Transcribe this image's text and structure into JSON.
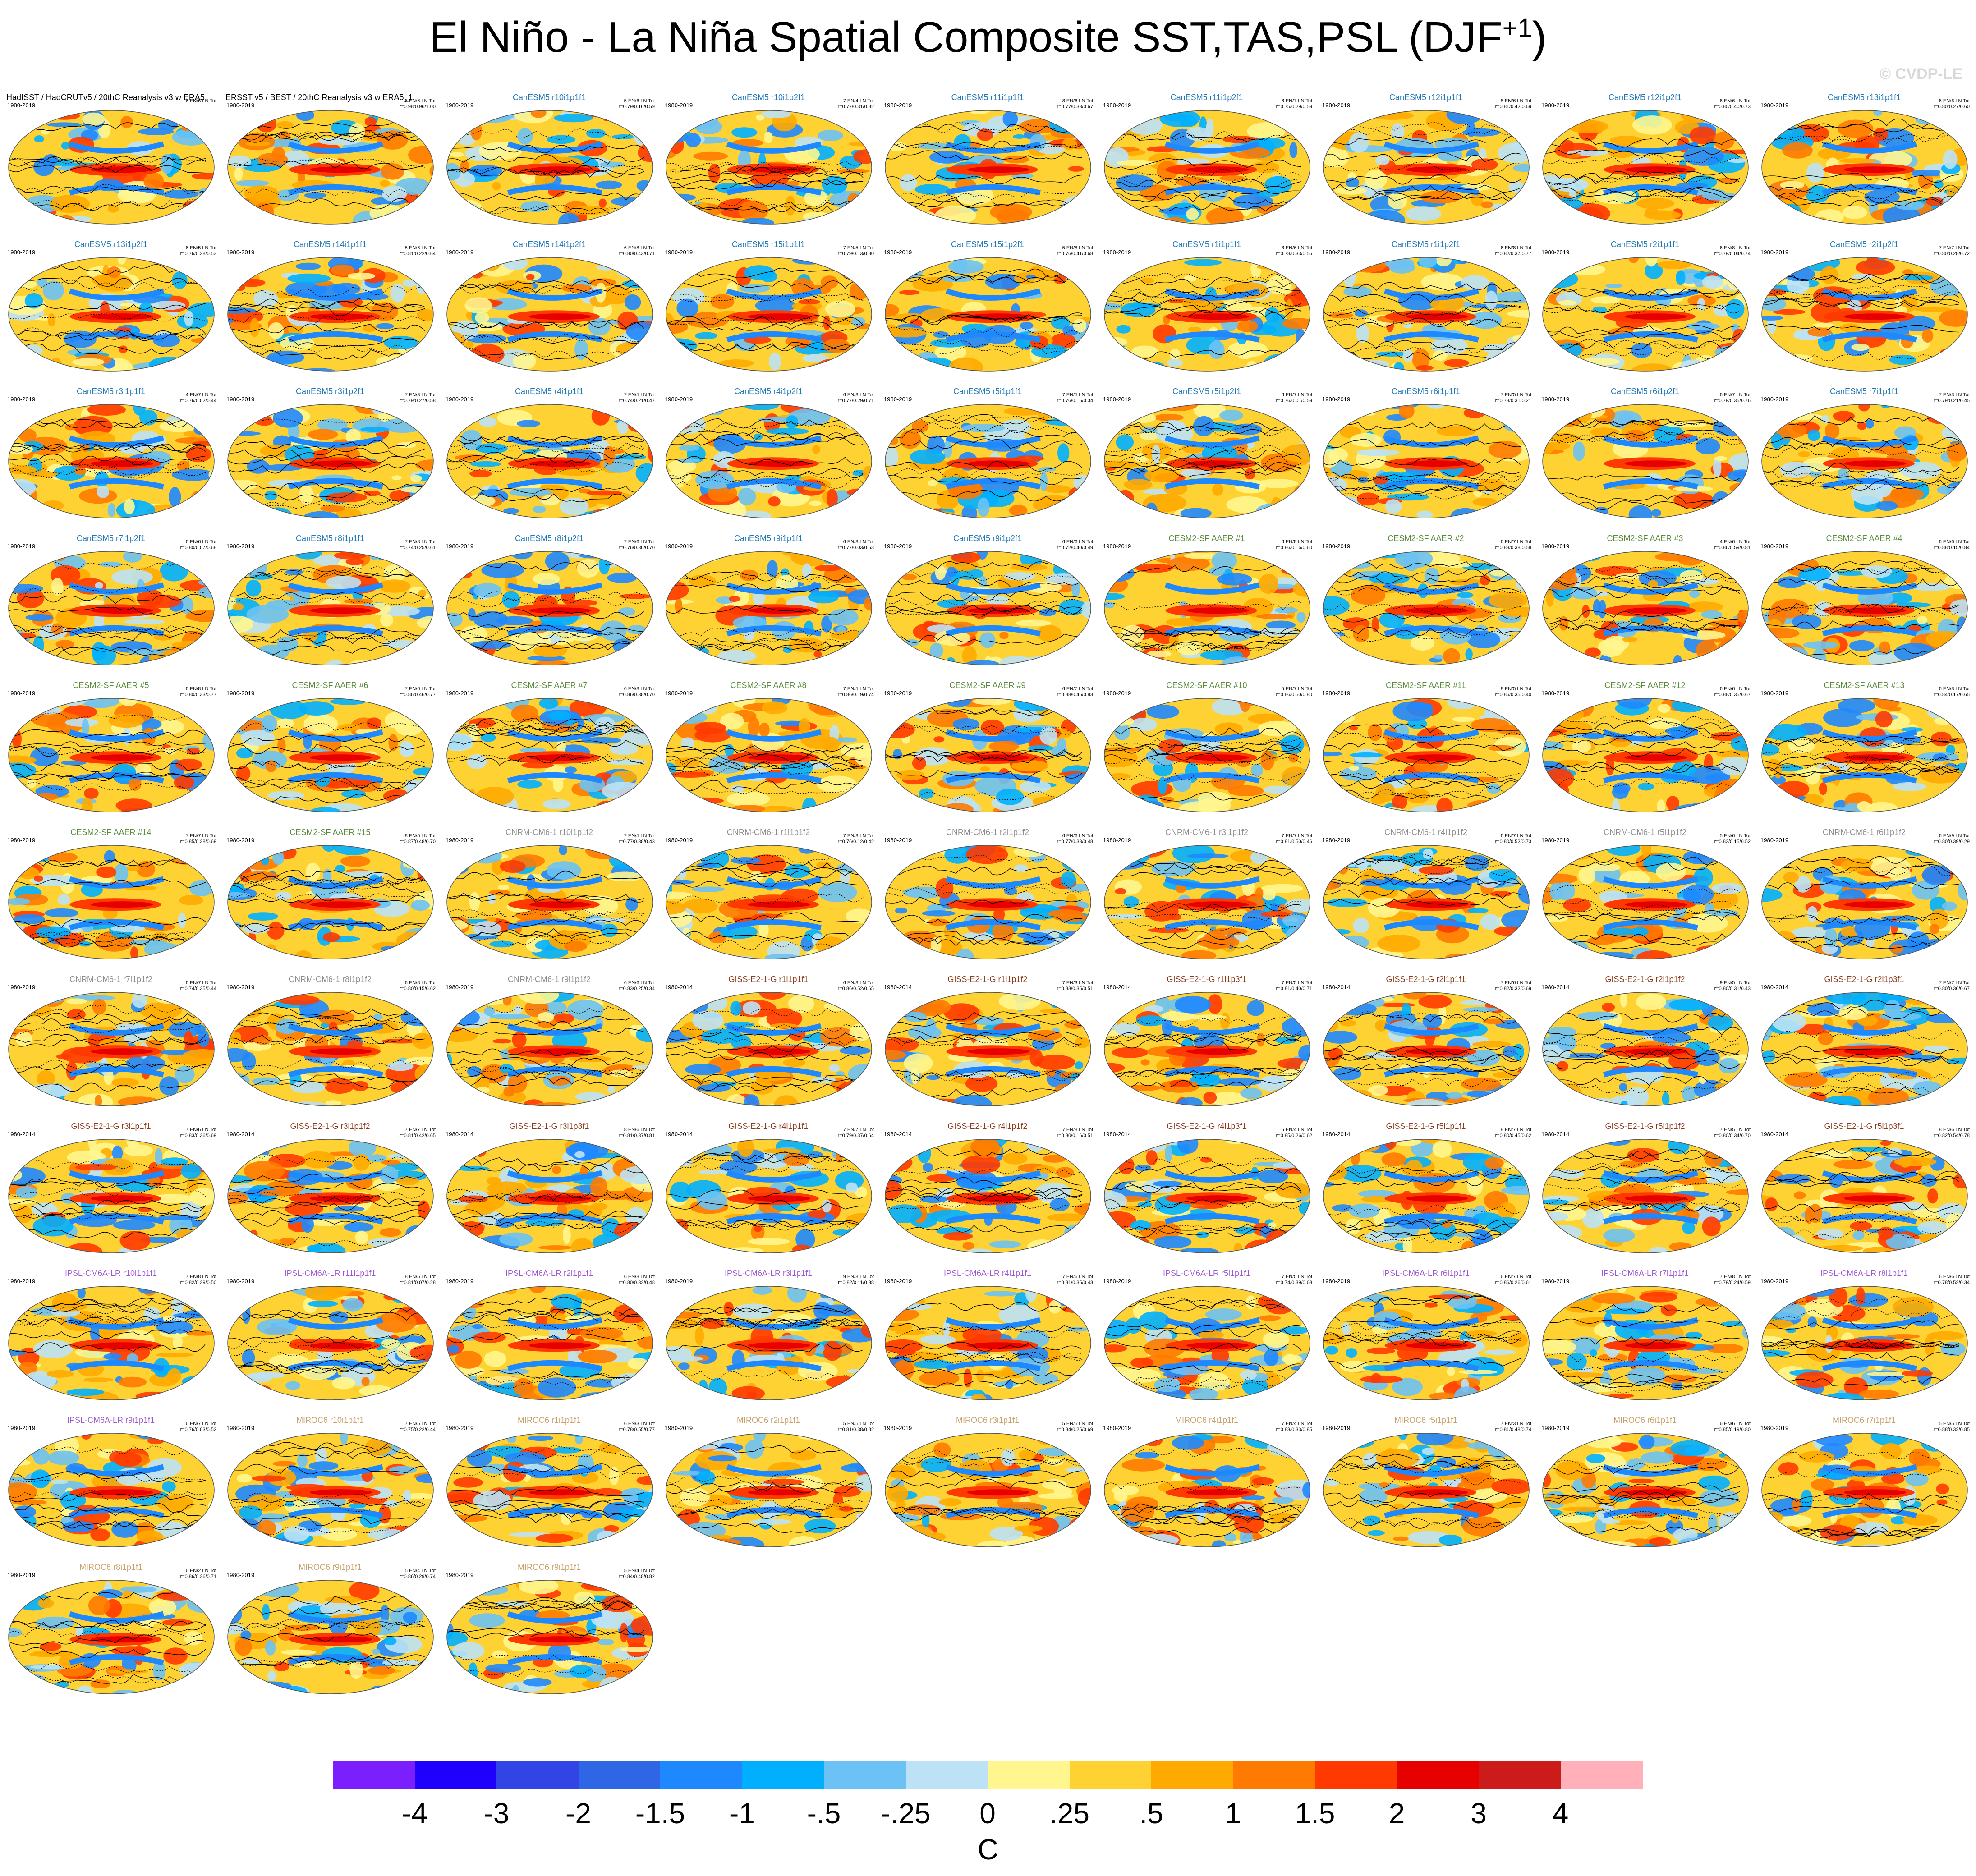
{
  "title": "El Niño - La Niña Spatial Composite SST,TAS,PSL (DJF",
  "title_sup": "+1",
  "title_close": ")",
  "copyright": "© CVDP-LE",
  "chart_data": {
    "type": "heatmap",
    "description_type": "small-multiples global maps (filled SST/TAS anomalies with PSL contours)",
    "colorbar": {
      "unit": "C",
      "tick_labels": [
        "-4",
        "-3",
        "-2",
        "-1.5",
        "-1",
        "-.5",
        "-.25",
        "0",
        ".25",
        ".5",
        "1",
        "1.5",
        "2",
        "3",
        "4"
      ],
      "colors": [
        "#7c1fff",
        "#1f00ff",
        "#3344e6",
        "#2f66e6",
        "#1e88ff",
        "#00b0ff",
        "#6cc2f4",
        "#bde2f5",
        "#fff68f",
        "#ffd233",
        "#ffaa00",
        "#ff7a00",
        "#ff3a00",
        "#e60000",
        "#cc1b1b",
        "#ffb0b8"
      ]
    },
    "panels": [
      {
        "title": "HadISST / HadCRUTv5 / 20thC Reanalysis v3 w ERA5",
        "years": "1980-2019",
        "stats": "6 EN/6 LN Tot",
        "group": "obs"
      },
      {
        "title": "ERSST v5 / BEST / 20thC Reanalysis v3 w ERA5_1",
        "years": "1980-2019",
        "stats": "6 EN/6 LN Tot\nr=0.98/0.96/1.00",
        "group": "obs"
      },
      {
        "title": "CanESM5 r10i1p1f1",
        "years": "1980-2019",
        "stats": "5 EN/6 LN Tot\nr=0.79/0.16/0.59",
        "group": "canesm"
      },
      {
        "title": "CanESM5 r10i1p2f1",
        "years": "1980-2019",
        "stats": "7 EN/4 LN Tot\nr=0.77/0.31/0.82",
        "group": "canesm"
      },
      {
        "title": "CanESM5 r11i1p1f1",
        "years": "1980-2019",
        "stats": "8 EN/6 LN Tot\nr=0.77/0.33/0.67",
        "group": "canesm"
      },
      {
        "title": "CanESM5 r11i1p2f1",
        "years": "1980-2019",
        "stats": "6 EN/7 LN Tot\nr=0.75/0.29/0.59",
        "group": "canesm"
      },
      {
        "title": "CanESM5 r12i1p1f1",
        "years": "1980-2019",
        "stats": "8 EN/6 LN Tot\nr=0.81/0.42/0.69",
        "group": "canesm"
      },
      {
        "title": "CanESM5 r12i1p2f1",
        "years": "1980-2019",
        "stats": "6 EN/6 LN Tot\nr=0.80/0.40/0.73",
        "group": "canesm"
      },
      {
        "title": "CanESM5 r13i1p1f1",
        "years": "1980-2019",
        "stats": "6 EN/6 LN Tot\nr=0.80/0.27/0.60",
        "group": "canesm"
      },
      {
        "title": "CanESM5 r13i1p2f1",
        "years": "1980-2019",
        "stats": "6 EN/5 LN Tot\nr=0.76/0.28/0.53",
        "group": "canesm"
      },
      {
        "title": "CanESM5 r14i1p1f1",
        "years": "1980-2019",
        "stats": "5 EN/6 LN Tot\nr=0.81/0.22/0.64",
        "group": "canesm"
      },
      {
        "title": "CanESM5 r14i1p2f1",
        "years": "1980-2019",
        "stats": "6 EN/8 LN Tot\nr=0.80/0.43/0.71",
        "group": "canesm"
      },
      {
        "title": "CanESM5 r15i1p1f1",
        "years": "1980-2019",
        "stats": "7 EN/5 LN Tot\nr=0.79/0.13/0.80",
        "group": "canesm"
      },
      {
        "title": "CanESM5 r15i1p2f1",
        "years": "1980-2019",
        "stats": "5 EN/8 LN Tot\nr=0.76/0.41/0.68",
        "group": "canesm"
      },
      {
        "title": "CanESM5 r1i1p1f1",
        "years": "1980-2019",
        "stats": "6 EN/6 LN Tot\nr=0.78/0.33/0.55",
        "group": "canesm"
      },
      {
        "title": "CanESM5 r1i1p2f1",
        "years": "1980-2019",
        "stats": "6 EN/8 LN Tot\nr=0.82/0.37/0.77",
        "group": "canesm"
      },
      {
        "title": "CanESM5 r2i1p1f1",
        "years": "1980-2019",
        "stats": "6 EN/8 LN Tot\nr=0.79/0.04/0.74",
        "group": "canesm"
      },
      {
        "title": "CanESM5 r2i1p2f1",
        "years": "1980-2019",
        "stats": "7 EN/7 LN Tot\nr=0.80/0.28/0.72",
        "group": "canesm"
      },
      {
        "title": "CanESM5 r3i1p1f1",
        "years": "1980-2019",
        "stats": "4 EN/7 LN Tot\nr=0.76/0.02/0.44",
        "group": "canesm"
      },
      {
        "title": "CanESM5 r3i1p2f1",
        "years": "1980-2019",
        "stats": "7 EN/3 LN Tot\nr=0.79/0.27/0.58",
        "group": "canesm"
      },
      {
        "title": "CanESM5 r4i1p1f1",
        "years": "1980-2019",
        "stats": "7 EN/5 LN Tot\nr=0.74/0.21/0.47",
        "group": "canesm"
      },
      {
        "title": "CanESM5 r4i1p2f1",
        "years": "1980-2019",
        "stats": "6 EN/8 LN Tot\nr=0.77/0.29/0.71",
        "group": "canesm"
      },
      {
        "title": "CanESM5 r5i1p1f1",
        "years": "1980-2019",
        "stats": "7 EN/5 LN Tot\nr=0.76/0.15/0.34",
        "group": "canesm"
      },
      {
        "title": "CanESM5 r5i1p2f1",
        "years": "1980-2019",
        "stats": "6 EN/7 LN Tot\nr=0.76/0.01/0.59",
        "group": "canesm"
      },
      {
        "title": "CanESM5 r6i1p1f1",
        "years": "1980-2019",
        "stats": "7 EN/5 LN Tot\nr=0.73/0.31/0.21",
        "group": "canesm"
      },
      {
        "title": "CanESM5 r6i1p2f1",
        "years": "1980-2019",
        "stats": "6 EN/7 LN Tot\nr=0.79/0.35/0.76",
        "group": "canesm"
      },
      {
        "title": "CanESM5 r7i1p1f1",
        "years": "1980-2019",
        "stats": "7 EN/3 LN Tot\nr=0.79/0.21/0.45",
        "group": "canesm"
      },
      {
        "title": "CanESM5 r7i1p2f1",
        "years": "1980-2019",
        "stats": "6 EN/6 LN Tot\nr=0.80/0.07/0.68",
        "group": "canesm"
      },
      {
        "title": "CanESM5 r8i1p1f1",
        "years": "1980-2019",
        "stats": "7 EN/8 LN Tot\nr=0.74/0.25/0.61",
        "group": "canesm"
      },
      {
        "title": "CanESM5 r8i1p2f1",
        "years": "1980-2019",
        "stats": "7 EN/6 LN Tot\nr=0.76/0.30/0.70",
        "group": "canesm"
      },
      {
        "title": "CanESM5 r9i1p1f1",
        "years": "1980-2019",
        "stats": "6 EN/8 LN Tot\nr=0.77/0.03/0.63",
        "group": "canesm"
      },
      {
        "title": "CanESM5 r9i1p2f1",
        "years": "1980-2019",
        "stats": "6 EN/6 LN Tot\nr=0.72/0.40/0.49",
        "group": "canesm"
      },
      {
        "title": "CESM2-SF AAER #1",
        "years": "1980-2019",
        "stats": "6 EN/8 LN Tot\nr=0.86/0.16/0.60",
        "group": "cesm"
      },
      {
        "title": "CESM2-SF AAER #2",
        "years": "1980-2019",
        "stats": "6 EN/7 LN Tot\nr=0.88/0.38/0.58",
        "group": "cesm"
      },
      {
        "title": "CESM2-SF AAER #3",
        "years": "1980-2019",
        "stats": "4 EN/6 LN Tot\nr=0.86/0.59/0.81",
        "group": "cesm"
      },
      {
        "title": "CESM2-SF AAER #4",
        "years": "1980-2019",
        "stats": "6 EN/6 LN Tot\nr=0.88/0.15/0.84",
        "group": "cesm"
      },
      {
        "title": "CESM2-SF AAER #5",
        "years": "1980-2019",
        "stats": "6 EN/8 LN Tot\nr=0.80/0.33/0.77",
        "group": "cesm"
      },
      {
        "title": "CESM2-SF AAER #6",
        "years": "1980-2019",
        "stats": "7 EN/6 LN Tot\nr=0.86/0.46/0.77",
        "group": "cesm"
      },
      {
        "title": "CESM2-SF AAER #7",
        "years": "1980-2019",
        "stats": "6 EN/8 LN Tot\nr=0.86/0.38/0.70",
        "group": "cesm"
      },
      {
        "title": "CESM2-SF AAER #8",
        "years": "1980-2019",
        "stats": "7 EN/5 LN Tot\nr=0.86/0.19/0.74",
        "group": "cesm"
      },
      {
        "title": "CESM2-SF AAER #9",
        "years": "1980-2019",
        "stats": "6 EN/7 LN Tot\nr=0.88/0.46/0.83",
        "group": "cesm"
      },
      {
        "title": "CESM2-SF AAER #10",
        "years": "1980-2019",
        "stats": "5 EN/7 LN Tot\nr=0.86/0.50/0.80",
        "group": "cesm"
      },
      {
        "title": "CESM2-SF AAER #11",
        "years": "1980-2019",
        "stats": "8 EN/5 LN Tot\nr=0.86/0.35/0.40",
        "group": "cesm"
      },
      {
        "title": "CESM2-SF AAER #12",
        "years": "1980-2019",
        "stats": "6 EN/6 LN Tot\nr=0.88/0.35/0.67",
        "group": "cesm"
      },
      {
        "title": "CESM2-SF AAER #13",
        "years": "1980-2019",
        "stats": "6 EN/8 LN Tot\nr=0.84/0.17/0.65",
        "group": "cesm"
      },
      {
        "title": "CESM2-SF AAER #14",
        "years": "1980-2019",
        "stats": "7 EN/7 LN Tot\nr=0.85/0.28/0.69",
        "group": "cesm"
      },
      {
        "title": "CESM2-SF AAER #15",
        "years": "1980-2019",
        "stats": "8 EN/5 LN Tot\nr=0.87/0.48/0.70",
        "group": "cesm"
      },
      {
        "title": "CNRM-CM6-1 r10i1p1f2",
        "years": "1980-2019",
        "stats": "7 EN/5 LN Tot\nr=0.77/0.38/0.43",
        "group": "cnrm"
      },
      {
        "title": "CNRM-CM6-1 r1i1p1f2",
        "years": "1980-2019",
        "stats": "7 EN/8 LN Tot\nr=0.76/0.12/0.42",
        "group": "cnrm"
      },
      {
        "title": "CNRM-CM6-1 r2i1p1f2",
        "years": "1980-2019",
        "stats": "6 EN/6 LN Tot\nr=0.77/0.33/0.48",
        "group": "cnrm"
      },
      {
        "title": "CNRM-CM6-1 r3i1p1f2",
        "years": "1980-2019",
        "stats": "7 EN/7 LN Tot\nr=0.81/0.50/0.46",
        "group": "cnrm"
      },
      {
        "title": "CNRM-CM6-1 r4i1p1f2",
        "years": "1980-2019",
        "stats": "6 EN/7 LN Tot\nr=0.80/0.52/0.73",
        "group": "cnrm"
      },
      {
        "title": "CNRM-CM6-1 r5i1p1f2",
        "years": "1980-2019",
        "stats": "5 EN/6 LN Tot\nr=0.83/0.15/0.52",
        "group": "cnrm"
      },
      {
        "title": "CNRM-CM6-1 r6i1p1f2",
        "years": "1980-2019",
        "stats": "6 EN/9 LN Tot\nr=0.80/0.39/0.29",
        "group": "cnrm"
      },
      {
        "title": "CNRM-CM6-1 r7i1p1f2",
        "years": "1980-2019",
        "stats": "6 EN/7 LN Tot\nr=0.74/0.35/0.44",
        "group": "cnrm"
      },
      {
        "title": "CNRM-CM6-1 r8i1p1f2",
        "years": "1980-2019",
        "stats": "6 EN/8 LN Tot\nr=0.80/0.15/0.62",
        "group": "cnrm"
      },
      {
        "title": "CNRM-CM6-1 r9i1p1f2",
        "years": "1980-2019",
        "stats": "6 EN/6 LN Tot\nr=0.83/0.25/0.34",
        "group": "cnrm"
      },
      {
        "title": "GISS-E2-1-G r1i1p1f1",
        "years": "1980-2014",
        "stats": "6 EN/8 LN Tot\nr=0.86/0.52/0.65",
        "group": "giss"
      },
      {
        "title": "GISS-E2-1-G r1i1p1f2",
        "years": "1980-2014",
        "stats": "7 EN/3 LN Tot\nr=0.83/0.35/0.51",
        "group": "giss"
      },
      {
        "title": "GISS-E2-1-G r1i1p3f1",
        "years": "1980-2014",
        "stats": "7 EN/5 LN Tot\nr=0.81/0.40/0.71",
        "group": "giss"
      },
      {
        "title": "GISS-E2-1-G r2i1p1f1",
        "years": "1980-2014",
        "stats": "7 EN/6 LN Tot\nr=0.82/0.32/0.69",
        "group": "giss"
      },
      {
        "title": "GISS-E2-1-G r2i1p1f2",
        "years": "1980-2014",
        "stats": "9 EN/5 LN Tot\nr=0.80/0.31/0.43",
        "group": "giss"
      },
      {
        "title": "GISS-E2-1-G r2i1p3f1",
        "years": "1980-2014",
        "stats": "7 EN/7 LN Tot\nr=0.80/0.36/0.67",
        "group": "giss"
      },
      {
        "title": "GISS-E2-1-G r3i1p1f1",
        "years": "1980-2014",
        "stats": "7 EN/6 LN Tot\nr=0.83/0.36/0.69",
        "group": "giss"
      },
      {
        "title": "GISS-E2-1-G r3i1p1f2",
        "years": "1980-2014",
        "stats": "7 EN/7 LN Tot\nr=0.81/0.42/0.65",
        "group": "giss"
      },
      {
        "title": "GISS-E2-1-G r3i1p3f1",
        "years": "1980-2014",
        "stats": "8 EN/6 LN Tot\nr=0.81/0.37/0.81",
        "group": "giss"
      },
      {
        "title": "GISS-E2-1-G r4i1p1f1",
        "years": "1980-2014",
        "stats": "7 EN/7 LN Tot\nr=0.79/0.37/0.64",
        "group": "giss"
      },
      {
        "title": "GISS-E2-1-G r4i1p1f2",
        "years": "1980-2014",
        "stats": "7 EN/8 LN Tot\nr=0.80/0.16/0.51",
        "group": "giss"
      },
      {
        "title": "GISS-E2-1-G r4i1p3f1",
        "years": "1980-2014",
        "stats": "6 EN/4 LN Tot\nr=0.85/0.26/0.62",
        "group": "giss"
      },
      {
        "title": "GISS-E2-1-G r5i1p1f1",
        "years": "1980-2014",
        "stats": "8 EN/7 LN Tot\nr=0.80/0.45/0.62",
        "group": "giss"
      },
      {
        "title": "GISS-E2-1-G r5i1p1f2",
        "years": "1980-2014",
        "stats": "7 EN/5 LN Tot\nr=0.80/0.34/0.70",
        "group": "giss"
      },
      {
        "title": "GISS-E2-1-G r5i1p3f1",
        "years": "1980-2014",
        "stats": "8 EN/6 LN Tot\nr=0.82/0.54/0.78",
        "group": "giss"
      },
      {
        "title": "IPSL-CM6A-LR r10i1p1f1",
        "years": "1980-2019",
        "stats": "7 EN/8 LN Tot\nr=0.82/0.29/0.50",
        "group": "ipsl"
      },
      {
        "title": "IPSL-CM6A-LR r11i1p1f1",
        "years": "1980-2019",
        "stats": "8 EN/5 LN Tot\nr=0.81/0.07/0.28",
        "group": "ipsl"
      },
      {
        "title": "IPSL-CM6A-LR r2i1p1f1",
        "years": "1980-2019",
        "stats": "6 EN/8 LN Tot\nr=0.80/0.32/0.48",
        "group": "ipsl"
      },
      {
        "title": "IPSL-CM6A-LR r3i1p1f1",
        "years": "1980-2019",
        "stats": "9 EN/8 LN Tot\nr=0.82/0.11/0.38",
        "group": "ipsl"
      },
      {
        "title": "IPSL-CM6A-LR r4i1p1f1",
        "years": "1980-2019",
        "stats": "7 EN/6 LN Tot\nr=0.81/0.35/0.43",
        "group": "ipsl"
      },
      {
        "title": "IPSL-CM6A-LR r5i1p1f1",
        "years": "1980-2019",
        "stats": "7 EN/5 LN Tot\nr=0.74/0.39/0.63",
        "group": "ipsl"
      },
      {
        "title": "IPSL-CM6A-LR r6i1p1f1",
        "years": "1980-2019",
        "stats": "6 EN/7 LN Tot\nr=0.86/0.26/0.61",
        "group": "ipsl"
      },
      {
        "title": "IPSL-CM6A-LR r7i1p1f1",
        "years": "1980-2019",
        "stats": "7 EN/8 LN Tot\nr=0.79/0.24/0.59",
        "group": "ipsl"
      },
      {
        "title": "IPSL-CM6A-LR r8i1p1f1",
        "years": "1980-2019",
        "stats": "6 EN/6 LN Tot\nr=0.78/0.52/0.34",
        "group": "ipsl"
      },
      {
        "title": "IPSL-CM6A-LR r9i1p1f1",
        "years": "1980-2019",
        "stats": "6 EN/7 LN Tot\nr=0.76/0.03/0.52",
        "group": "ipsl"
      },
      {
        "title": "MIROC6 r10i1p1f1",
        "years": "1980-2019",
        "stats": "7 EN/5 LN Tot\nr=0.75/0.22/0.44",
        "group": "miroc"
      },
      {
        "title": "MIROC6 r1i1p1f1",
        "years": "1980-2019",
        "stats": "6 EN/3 LN Tot\nr=0.78/0.55/0.77",
        "group": "miroc"
      },
      {
        "title": "MIROC6 r2i1p1f1",
        "years": "1980-2019",
        "stats": "5 EN/5 LN Tot\nr=0.81/0.38/0.82",
        "group": "miroc"
      },
      {
        "title": "MIROC6 r3i1p1f1",
        "years": "1980-2019",
        "stats": "5 EN/5 LN Tot\nr=0.84/0.25/0.69",
        "group": "miroc"
      },
      {
        "title": "MIROC6 r4i1p1f1",
        "years": "1980-2019",
        "stats": "7 EN/4 LN Tot\nr=0.83/0.33/0.85",
        "group": "miroc"
      },
      {
        "title": "MIROC6 r5i1p1f1",
        "years": "1980-2019",
        "stats": "7 EN/3 LN Tot\nr=0.81/0.48/0.74",
        "group": "miroc"
      },
      {
        "title": "MIROC6 r6i1p1f1",
        "years": "1980-2019",
        "stats": "6 EN/6 LN Tot\nr=0.85/0.19/0.80",
        "group": "miroc"
      },
      {
        "title": "MIROC6 r7i1p1f1",
        "years": "1980-2019",
        "stats": "5 EN/5 LN Tot\nr=0.88/0.32/0.85",
        "group": "miroc"
      },
      {
        "title": "MIROC6 r8i1p1f1",
        "years": "1980-2019",
        "stats": "6 EN/2 LN Tot\nr=0.86/0.26/0.71",
        "group": "miroc"
      },
      {
        "title": "MIROC6 r9i1p1f1",
        "years": "1980-2019",
        "stats": "5 EN/4 LN Tot\nr=0.86/0.29/0.74",
        "group": "miroc"
      },
      {
        "title": "MIROC6 r9i1p1f1",
        "years": "1980-2019",
        "stats": "5 EN/4 LN Tot\nr=0.84/0.48/0.82",
        "group": "miroc"
      }
    ]
  },
  "group_colors": {
    "obs": "#000000",
    "canesm": "#1f77b4",
    "cesm": "#5a8a3a",
    "cnrm": "#8c8c8c",
    "giss": "#8b3a1a",
    "ipsl": "#9b59d0",
    "miroc": "#c8a06a"
  }
}
